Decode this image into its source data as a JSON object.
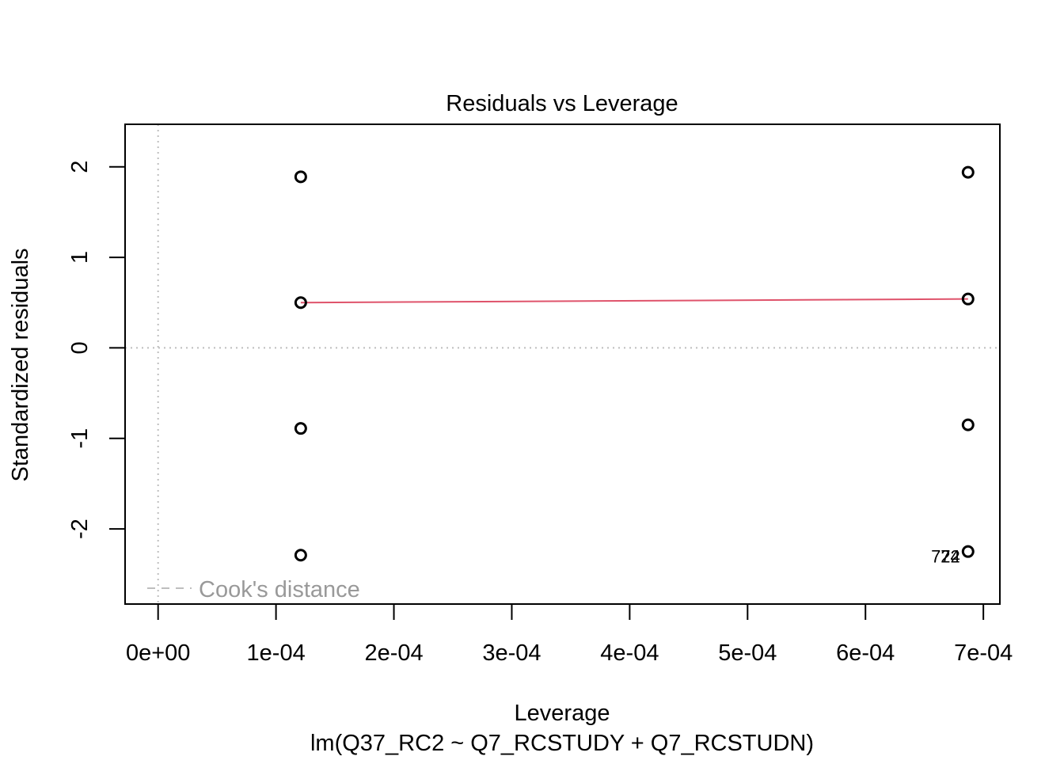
{
  "chart_data": {
    "type": "scatter",
    "title": "Residuals vs Leverage",
    "xlabel": "Leverage",
    "subtitle": "lm(Q37_RC2 ~ Q7_RCSTUDY + Q7_RCSTUDN)",
    "ylabel": "Standardized residuals",
    "xlim": [
      -2.8e-05,
      0.000714
    ],
    "ylim": [
      -2.83,
      2.47
    ],
    "x_ticks": [
      0,
      0.0001,
      0.0002,
      0.0003,
      0.0004,
      0.0005,
      0.0006,
      0.0007
    ],
    "x_tick_labels": [
      "0e+00",
      "1e-04",
      "2e-04",
      "3e-04",
      "4e-04",
      "5e-04",
      "6e-04",
      "7e-04"
    ],
    "y_ticks": [
      -2,
      -1,
      0,
      1,
      2
    ],
    "y_tick_labels": [
      "-2",
      "-1",
      "0",
      "1",
      "2"
    ],
    "points": [
      {
        "x": 0.000121,
        "y": 1.89
      },
      {
        "x": 0.000121,
        "y": 0.5
      },
      {
        "x": 0.000121,
        "y": -0.89
      },
      {
        "x": 0.000121,
        "y": -2.29
      },
      {
        "x": 0.000687,
        "y": 1.94
      },
      {
        "x": 0.000687,
        "y": 0.54
      },
      {
        "x": 0.000687,
        "y": -0.85
      },
      {
        "x": 0.000687,
        "y": -2.25
      }
    ],
    "point_labels": [
      {
        "x": 0.000687,
        "y": -2.25,
        "text": "722"
      },
      {
        "x": 0.000687,
        "y": -2.25,
        "text": "74"
      }
    ],
    "smooth_line": {
      "x": [
        0.000121,
        0.000687
      ],
      "y": [
        0.5,
        0.54
      ]
    },
    "reference_lines": {
      "h": 0,
      "v": 0
    },
    "legend": {
      "entry": "Cook's distance",
      "position": "bottom-left"
    },
    "colors": {
      "points": "#000000",
      "smooth": "#df536b",
      "reference": "#bebebe",
      "legend_text": "#999999"
    }
  }
}
